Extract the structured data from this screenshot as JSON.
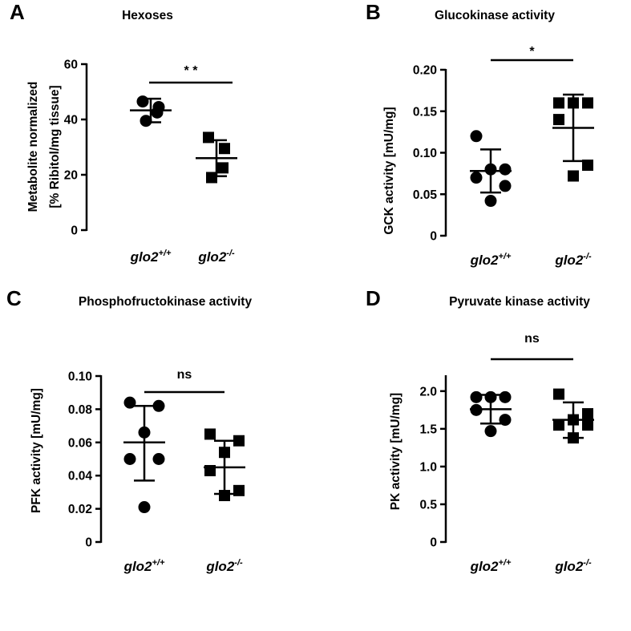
{
  "chart_data": [
    {
      "panel": "A",
      "type": "scatter",
      "title": "Hexoses",
      "ylabel": [
        "Metabolite normalized",
        "[% Ribitol/mg tissue]"
      ],
      "ylim": [
        0,
        60
      ],
      "yticks": [
        0,
        20,
        40,
        60
      ],
      "ytick_labels": [
        "0",
        "20",
        "40",
        "60"
      ],
      "categories": [
        {
          "base": "glo2",
          "sup": "+/+"
        },
        {
          "base": "glo2",
          "sup": "-/-"
        }
      ],
      "series": [
        {
          "marker": "circle",
          "values": [
            46.5,
            44.5,
            42.5,
            39.5
          ],
          "mean": 43.3,
          "sd_low": 39.0,
          "sd_high": 47.5
        },
        {
          "marker": "square",
          "values": [
            33.5,
            29.5,
            22.5,
            19.0
          ],
          "mean": 26.0,
          "sd_low": 19.5,
          "sd_high": 32.5
        }
      ],
      "significance": "* *"
    },
    {
      "panel": "B",
      "type": "scatter",
      "title": "Glucokinase activity",
      "ylabel": [
        "GCK activity [mU/mg]"
      ],
      "ylim": [
        0,
        0.2
      ],
      "yticks": [
        0,
        0.05,
        0.1,
        0.15,
        0.2
      ],
      "ytick_labels": [
        "0",
        "0.05",
        "0.10",
        "0.15",
        "0.20"
      ],
      "categories": [
        {
          "base": "glo2",
          "sup": "+/+"
        },
        {
          "base": "glo2",
          "sup": "-/-"
        }
      ],
      "series": [
        {
          "marker": "circle",
          "values": [
            0.12,
            0.08,
            0.08,
            0.07,
            0.06,
            0.042
          ],
          "mean": 0.078,
          "sd_low": 0.052,
          "sd_high": 0.104
        },
        {
          "marker": "square",
          "values": [
            0.16,
            0.16,
            0.16,
            0.14,
            0.085,
            0.072
          ],
          "mean": 0.13,
          "sd_low": 0.09,
          "sd_high": 0.17
        }
      ],
      "significance": "*"
    },
    {
      "panel": "C",
      "type": "scatter",
      "title": "Phosphofructokinase activity",
      "ylabel": [
        "PFK activity [mU/mg]"
      ],
      "ylim": [
        0,
        0.1
      ],
      "yticks": [
        0,
        0.02,
        0.04,
        0.06,
        0.08,
        0.1
      ],
      "ytick_labels": [
        "0",
        "0.02",
        "0.04",
        "0.06",
        "0.08",
        "0.10"
      ],
      "categories": [
        {
          "base": "glo2",
          "sup": "+/+"
        },
        {
          "base": "glo2",
          "sup": "-/-"
        }
      ],
      "series": [
        {
          "marker": "circle",
          "values": [
            0.084,
            0.082,
            0.066,
            0.05,
            0.05,
            0.021
          ],
          "mean": 0.06,
          "sd_low": 0.037,
          "sd_high": 0.082
        },
        {
          "marker": "square",
          "values": [
            0.065,
            0.061,
            0.054,
            0.043,
            0.031,
            0.028
          ],
          "mean": 0.045,
          "sd_low": 0.029,
          "sd_high": 0.061
        }
      ],
      "significance": "ns"
    },
    {
      "panel": "D",
      "type": "scatter",
      "title": "Pyruvate kinase activity",
      "ylabel": [
        "PK activity [mU/mg]"
      ],
      "ylim": [
        0,
        2.2
      ],
      "yticks": [
        0,
        0.5,
        1.0,
        1.5,
        2.0
      ],
      "ytick_labels": [
        "0",
        "0.5",
        "1.0",
        "1.5",
        "2.0"
      ],
      "categories": [
        {
          "base": "glo2",
          "sup": "+/+"
        },
        {
          "base": "glo2",
          "sup": "-/-"
        }
      ],
      "series": [
        {
          "marker": "circle",
          "values": [
            1.92,
            1.92,
            1.92,
            1.75,
            1.62,
            1.47
          ],
          "mean": 1.76,
          "sd_low": 1.57,
          "sd_high": 1.95
        },
        {
          "marker": "square",
          "values": [
            1.96,
            1.7,
            1.62,
            1.55,
            1.55,
            1.38
          ],
          "mean": 1.62,
          "sd_low": 1.38,
          "sd_high": 1.85
        }
      ],
      "significance": "ns"
    }
  ]
}
